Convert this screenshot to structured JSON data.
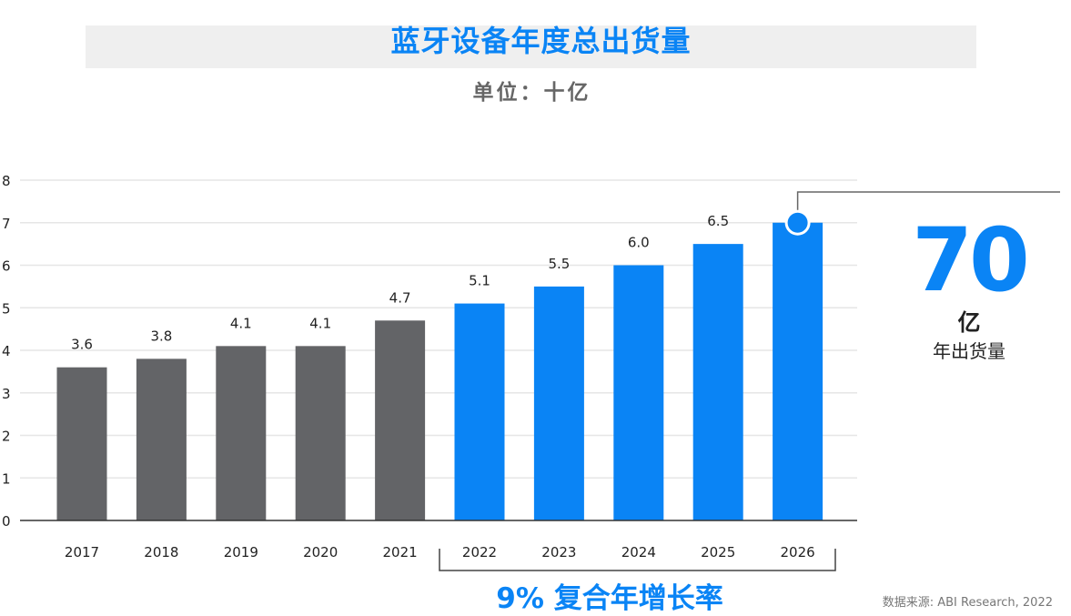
{
  "chart_data": {
    "type": "bar",
    "title": "蓝牙设备年度总出货量",
    "subtitle": "单位：十亿",
    "categories": [
      "2017",
      "2018",
      "2019",
      "2020",
      "2021",
      "2022",
      "2023",
      "2024",
      "2025",
      "2026"
    ],
    "values": [
      3.6,
      3.8,
      4.1,
      4.1,
      4.7,
      5.1,
      5.5,
      6.0,
      6.5,
      7.0
    ],
    "data_labels": [
      "3.6",
      "3.8",
      "4.1",
      "4.1",
      "4.7",
      "5.1",
      "5.5",
      "6.0",
      "6.5",
      ""
    ],
    "ylim": [
      0,
      8
    ],
    "yticks": [
      "0",
      "1",
      "2",
      "3",
      "4",
      "5",
      "6",
      "7",
      "8"
    ],
    "grid": true,
    "colors": {
      "historical": "#636467",
      "forecast": "#0a84f5"
    },
    "forecast_start": "2022",
    "callout": {
      "value": "70",
      "unit": "亿",
      "label": "年出货量"
    },
    "cagr_label": "9% 复合年增长率",
    "source": "数据来源: ABI Research, 2022"
  }
}
